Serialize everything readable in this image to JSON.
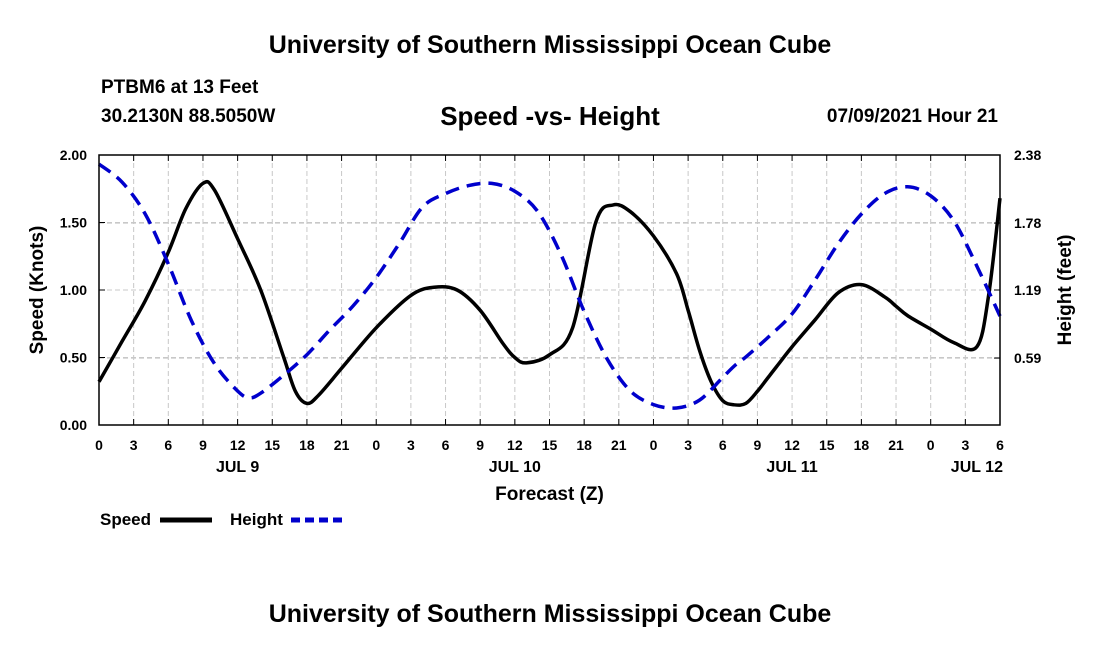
{
  "header": {
    "title": "University of Southern Mississippi Ocean Cube",
    "station": "PTBM6 at 13 Feet",
    "coords": "30.2130N  88.5050W",
    "datetime": "07/09/2021 Hour 21"
  },
  "footer": {
    "title": "University of Southern Mississippi Ocean Cube"
  },
  "chart_data": {
    "type": "line",
    "title": "Speed -vs- Height",
    "xlabel": "Forecast (Z)",
    "ylabel_left": "Speed (Knots)",
    "ylabel_right": "Height (feet)",
    "x_unit": "hours from JUL 9 00Z",
    "xlim": [
      0,
      78
    ],
    "ylim_left": [
      0,
      2.0
    ],
    "ylim_right": [
      0,
      2.38
    ],
    "x_ticks": [
      0,
      3,
      6,
      9,
      12,
      15,
      18,
      21,
      24,
      27,
      30,
      33,
      36,
      39,
      42,
      45,
      48,
      51,
      54,
      57,
      60,
      63,
      66,
      69,
      72,
      75,
      78
    ],
    "x_tick_labels": [
      "0",
      "3",
      "6",
      "9",
      "12",
      "15",
      "18",
      "21",
      "0",
      "3",
      "6",
      "9",
      "12",
      "15",
      "18",
      "21",
      "0",
      "3",
      "6",
      "9",
      "12",
      "15",
      "18",
      "21",
      "0",
      "3",
      "6"
    ],
    "day_labels": [
      {
        "x": 12,
        "label": "JUL 9"
      },
      {
        "x": 36,
        "label": "JUL 10"
      },
      {
        "x": 60,
        "label": "JUL 11"
      },
      {
        "x": 76,
        "label": "JUL 12"
      }
    ],
    "y_ticks_left": [
      0.0,
      0.5,
      1.0,
      1.5,
      2.0
    ],
    "y_tick_labels_left": [
      "0.00",
      "0.50",
      "1.00",
      "1.50",
      "2.00"
    ],
    "y_ticks_right": [
      0.59,
      1.19,
      1.78,
      2.38
    ],
    "y_tick_labels_right": [
      "0.59",
      "1.19",
      "1.78",
      "2.38"
    ],
    "grid": true,
    "legend": [
      "Speed",
      "Height"
    ],
    "series": [
      {
        "name": "Speed",
        "axis": "left",
        "color": "#000000",
        "style": "solid",
        "x": [
          0,
          2,
          4,
          6,
          7.5,
          9,
          10,
          12,
          14,
          16,
          17,
          18,
          19,
          21,
          24,
          27,
          29,
          31,
          33,
          35,
          36,
          37,
          39,
          41,
          43,
          44.5,
          46,
          48,
          50,
          51,
          52,
          53,
          54,
          55,
          56,
          57,
          58,
          59,
          60,
          62,
          64,
          66,
          68,
          69,
          70,
          72,
          74,
          76,
          77,
          78
        ],
        "values": [
          0.32,
          0.62,
          0.92,
          1.28,
          1.6,
          1.79,
          1.74,
          1.38,
          1.0,
          0.5,
          0.25,
          0.16,
          0.22,
          0.42,
          0.72,
          0.96,
          1.02,
          1.0,
          0.85,
          0.6,
          0.5,
          0.46,
          0.52,
          0.72,
          1.5,
          1.63,
          1.58,
          1.4,
          1.12,
          0.85,
          0.55,
          0.32,
          0.18,
          0.15,
          0.16,
          0.25,
          0.36,
          0.47,
          0.58,
          0.78,
          0.98,
          1.04,
          0.95,
          0.88,
          0.81,
          0.71,
          0.61,
          0.58,
          0.95,
          1.68
        ]
      },
      {
        "name": "Height",
        "axis": "right",
        "color": "#0000cc",
        "style": "dashed",
        "x": [
          0,
          2,
          4,
          6,
          8,
          10,
          12,
          13,
          14,
          16,
          18,
          20,
          22,
          24,
          26,
          28,
          30,
          32,
          34,
          36,
          38,
          40,
          42,
          44,
          46,
          48,
          50,
          52,
          54,
          55,
          56,
          58,
          60,
          62,
          64,
          66,
          68,
          70,
          72,
          74,
          76,
          78
        ],
        "values": [
          2.3,
          2.14,
          1.86,
          1.42,
          0.92,
          0.54,
          0.3,
          0.24,
          0.28,
          0.44,
          0.62,
          0.84,
          1.05,
          1.3,
          1.6,
          1.92,
          2.04,
          2.11,
          2.13,
          2.06,
          1.88,
          1.5,
          1.0,
          0.58,
          0.3,
          0.18,
          0.15,
          0.22,
          0.42,
          0.52,
          0.6,
          0.78,
          0.98,
          1.28,
          1.6,
          1.86,
          2.04,
          2.1,
          2.02,
          1.8,
          1.4,
          0.96
        ]
      }
    ]
  }
}
